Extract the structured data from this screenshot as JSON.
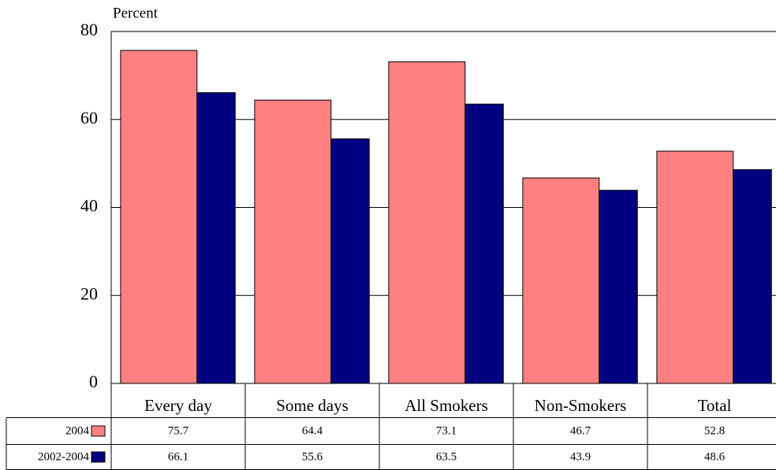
{
  "chart_data": {
    "type": "bar",
    "y_label": "Percent",
    "categories": [
      "Every day",
      "Some days",
      "All Smokers",
      "Non-Smokers",
      "Total"
    ],
    "series": [
      {
        "name": "2004",
        "color": "#ff8080",
        "values": [
          75.7,
          64.4,
          73.1,
          46.7,
          52.8
        ]
      },
      {
        "name": "2002-2004",
        "color": "#000080",
        "values": [
          66.1,
          55.6,
          63.5,
          43.9,
          48.6
        ]
      }
    ],
    "ylim": [
      0,
      80
    ],
    "yticks": [
      0,
      20,
      40,
      60,
      80
    ],
    "grid": true
  }
}
